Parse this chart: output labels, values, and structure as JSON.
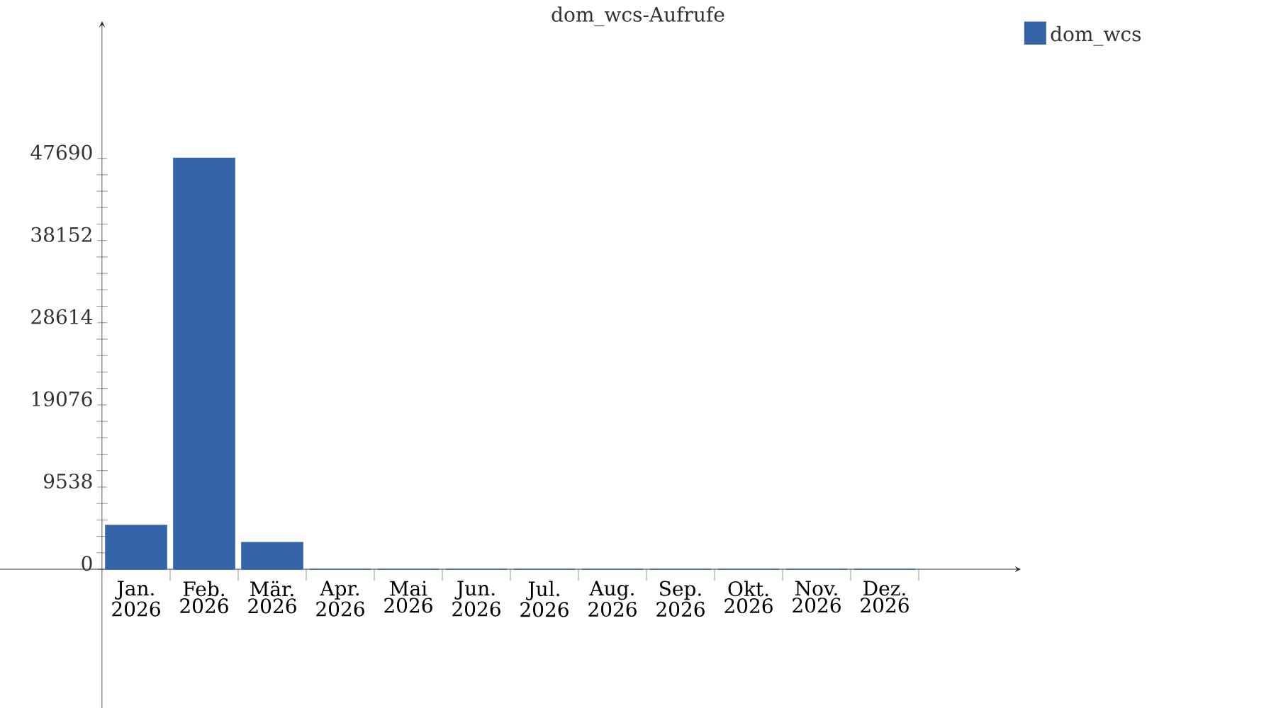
{
  "chart_data": {
    "type": "bar",
    "title": "dom_wcs-Aufrufe",
    "categories": [
      "Jan. 2026",
      "Feb. 2026",
      "Mär. 2026",
      "Apr. 2026",
      "Mai 2026",
      "Jun. 2026",
      "Jul. 2026",
      "Aug. 2026",
      "Sep. 2026",
      "Okt. 2026",
      "Nov. 2026",
      "Dez. 2026"
    ],
    "series": [
      {
        "name": "dom_wcs",
        "color": "#3465a8",
        "values": [
          5100,
          47690,
          3100,
          0,
          0,
          0,
          0,
          0,
          0,
          0,
          0,
          0
        ]
      }
    ],
    "ylim": [
      -16100,
      63600
    ],
    "yticks": [
      0,
      9538,
      19076,
      28614,
      38152,
      47690
    ],
    "grid": false,
    "legend": "top right"
  }
}
